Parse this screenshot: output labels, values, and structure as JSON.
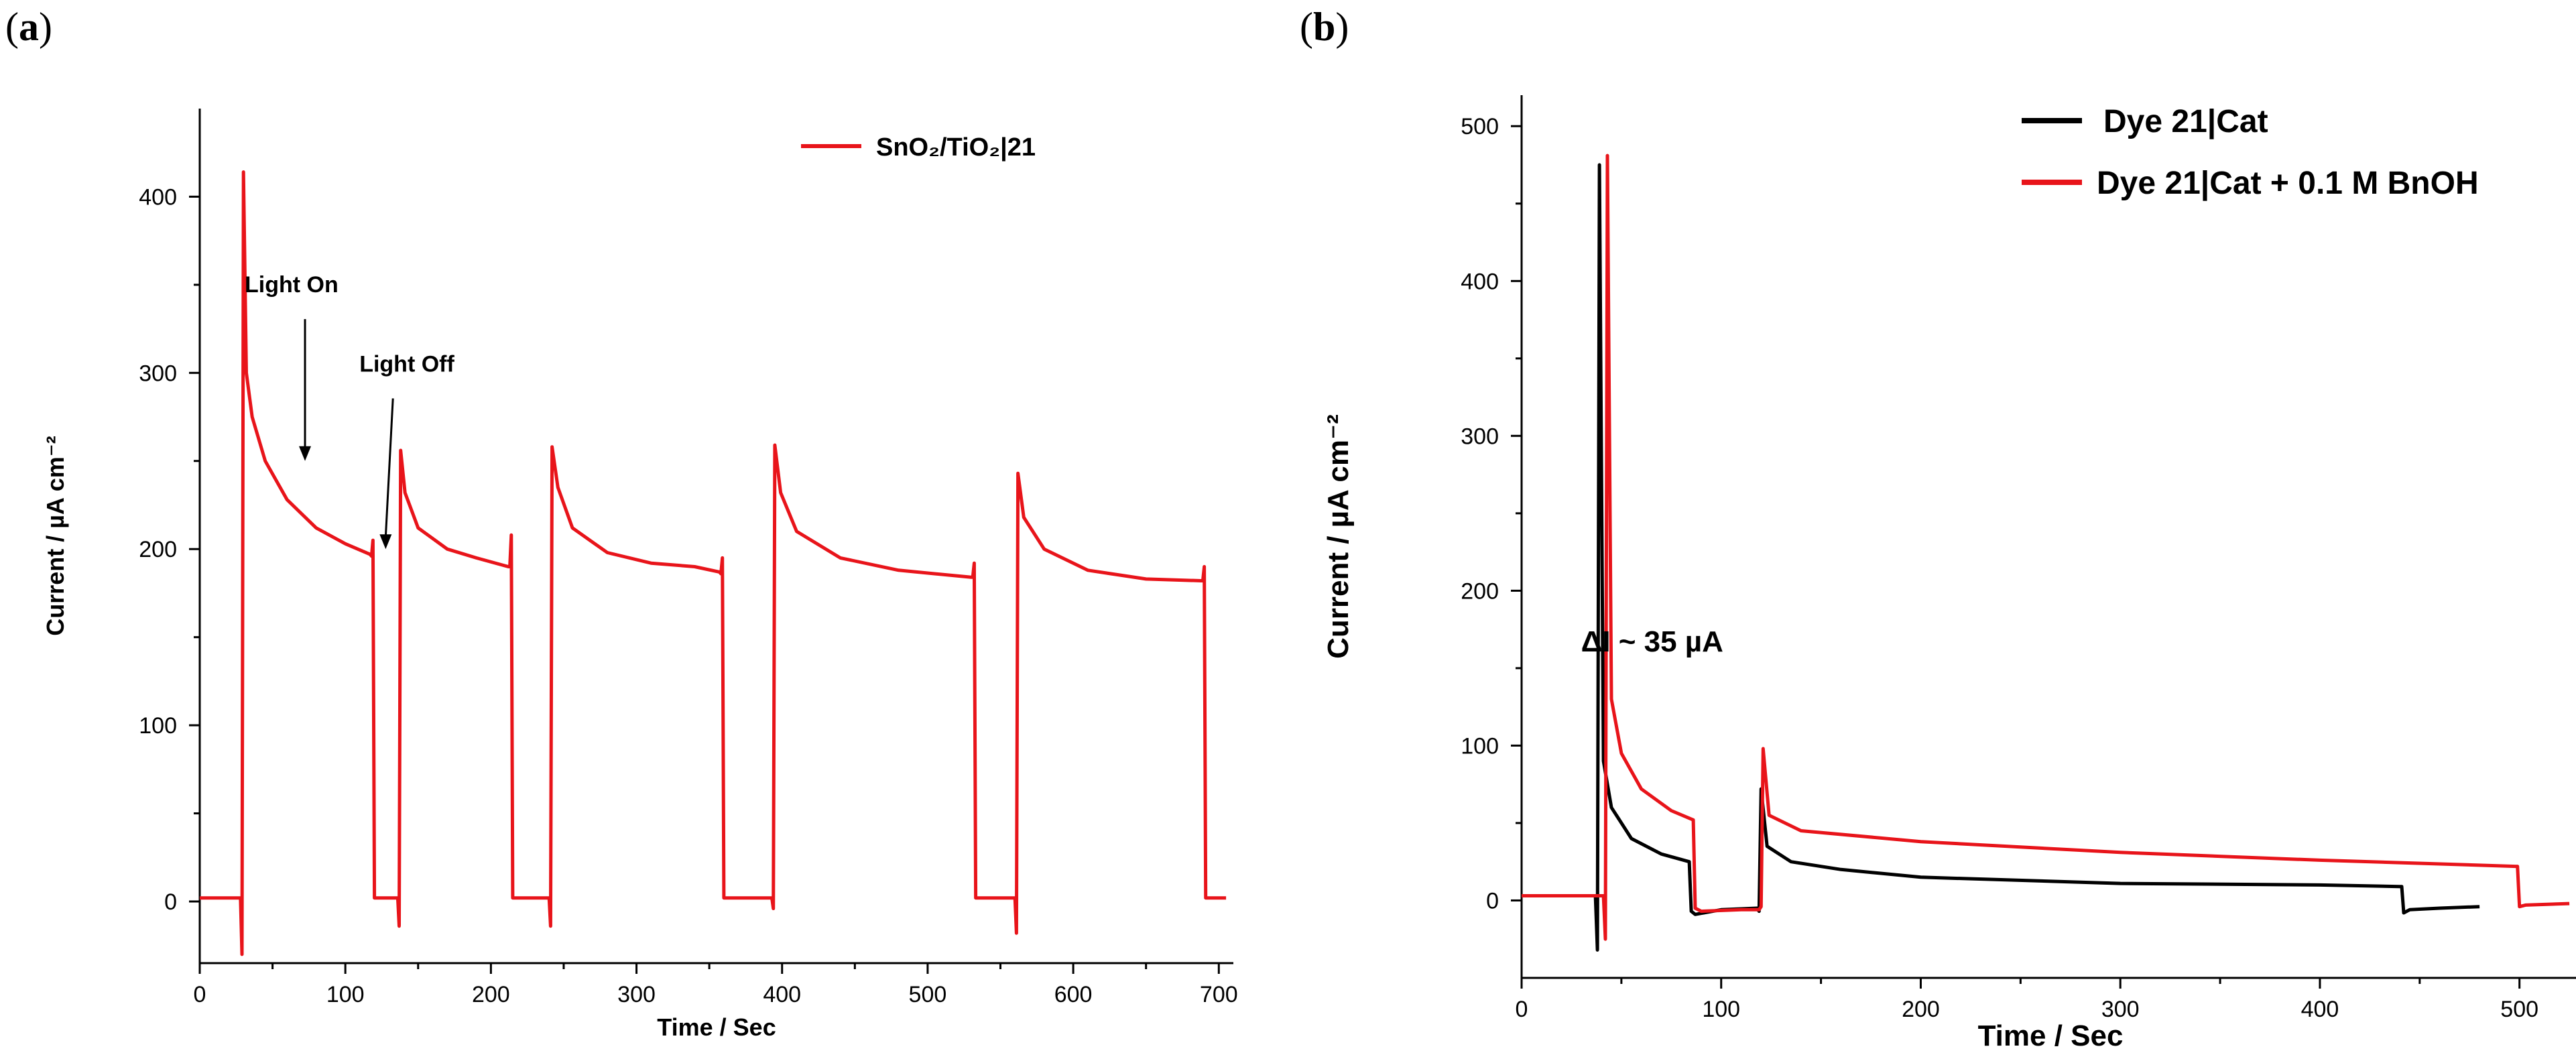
{
  "panels": {
    "a": {
      "label_open": "(",
      "label_letter": "a",
      "label_close": ")"
    },
    "b": {
      "label_open": "(",
      "label_letter": "b",
      "label_close": ")"
    }
  },
  "chart_data": [
    {
      "id": "a",
      "type": "line",
      "title": "",
      "xlabel": "Time / Sec",
      "ylabel": "Current / µA cm⁻²",
      "xlim": [
        0,
        710
      ],
      "ylim": [
        -35,
        450
      ],
      "xticks": [
        0,
        100,
        200,
        300,
        400,
        500,
        600,
        700
      ],
      "yticks": [
        0,
        100,
        200,
        300,
        400
      ],
      "legend": {
        "position": "top-right",
        "entries": [
          {
            "text": "SnO₂/TiO₂|21",
            "color": "#e8141a"
          }
        ]
      },
      "annotations": [
        {
          "text": "Light On",
          "x": 70,
          "y": 340,
          "arrow_to": [
            70,
            250
          ]
        },
        {
          "text": "Light Off",
          "x": 135,
          "y": 295,
          "arrow_to": [
            130,
            200
          ]
        }
      ],
      "series": [
        {
          "name": "SnO₂/TiO₂|21",
          "color": "#e8141a",
          "points": [
            [
              0,
              2
            ],
            [
              28,
              2
            ],
            [
              29,
              -30
            ],
            [
              30,
              414
            ],
            [
              32,
              300
            ],
            [
              36,
              275
            ],
            [
              45,
              250
            ],
            [
              60,
              228
            ],
            [
              80,
              212
            ],
            [
              100,
              203
            ],
            [
              117,
              197
            ],
            [
              118,
              196
            ],
            [
              119,
              205
            ],
            [
              120,
              2
            ],
            [
              136,
              2
            ],
            [
              137,
              -14
            ],
            [
              138,
              256
            ],
            [
              141,
              232
            ],
            [
              150,
              212
            ],
            [
              170,
              200
            ],
            [
              190,
              195
            ],
            [
              212,
              190
            ],
            [
              213,
              190
            ],
            [
              214,
              208
            ],
            [
              215,
              2
            ],
            [
              240,
              2
            ],
            [
              241,
              -14
            ],
            [
              242,
              258
            ],
            [
              246,
              235
            ],
            [
              256,
              212
            ],
            [
              280,
              198
            ],
            [
              310,
              192
            ],
            [
              340,
              190
            ],
            [
              357,
              187
            ],
            [
              358,
              186
            ],
            [
              359,
              195
            ],
            [
              360,
              2
            ],
            [
              393,
              2
            ],
            [
              394,
              -4
            ],
            [
              395,
              259
            ],
            [
              399,
              232
            ],
            [
              410,
              210
            ],
            [
              440,
              195
            ],
            [
              480,
              188
            ],
            [
              530,
              184
            ],
            [
              531,
              184
            ],
            [
              532,
              192
            ],
            [
              533,
              2
            ],
            [
              560,
              2
            ],
            [
              561,
              -18
            ],
            [
              562,
              243
            ],
            [
              566,
              218
            ],
            [
              580,
              200
            ],
            [
              610,
              188
            ],
            [
              650,
              183
            ],
            [
              688,
              182
            ],
            [
              689,
              182
            ],
            [
              690,
              190
            ],
            [
              691,
              2
            ],
            [
              705,
              2
            ]
          ]
        }
      ]
    },
    {
      "id": "b",
      "type": "line",
      "title": "",
      "xlabel": "Time / Sec",
      "ylabel": "Current / µA cm⁻²",
      "xlim": [
        0,
        530
      ],
      "ylim": [
        -50,
        520
      ],
      "xticks": [
        0,
        100,
        200,
        300,
        400,
        500
      ],
      "yticks": [
        0,
        100,
        200,
        300,
        400,
        500
      ],
      "legend": {
        "position": "top-right",
        "entries": [
          {
            "text": "Dye 21|Cat",
            "color": "#000000"
          },
          {
            "text": "Dye 21|Cat + 0.1 M BnOH",
            "color": "#e8141a"
          }
        ]
      },
      "annotations": [
        {
          "text": "ΔI ~ 35 µA",
          "x": 60,
          "y": 140
        }
      ],
      "series": [
        {
          "name": "Dye 21|Cat",
          "color": "#000000",
          "points": [
            [
              37,
              2
            ],
            [
              38,
              -32
            ],
            [
              39,
              475
            ],
            [
              41,
              90
            ],
            [
              45,
              60
            ],
            [
              55,
              40
            ],
            [
              70,
              30
            ],
            [
              84,
              25
            ],
            [
              85,
              -7
            ],
            [
              87,
              -9
            ],
            [
              100,
              -6
            ],
            [
              118,
              -5
            ],
            [
              119,
              -7
            ],
            [
              120,
              72
            ],
            [
              123,
              35
            ],
            [
              135,
              25
            ],
            [
              160,
              20
            ],
            [
              200,
              15
            ],
            [
              300,
              11
            ],
            [
              400,
              10
            ],
            [
              440,
              9
            ],
            [
              441,
              9
            ],
            [
              442,
              -8
            ],
            [
              445,
              -6
            ],
            [
              460,
              -5
            ],
            [
              480,
              -4
            ]
          ]
        },
        {
          "name": "Dye 21|Cat + 0.1 M BnOH",
          "color": "#e8141a",
          "points": [
            [
              0,
              3
            ],
            [
              41,
              3
            ],
            [
              42,
              -25
            ],
            [
              43,
              481
            ],
            [
              45,
              130
            ],
            [
              50,
              95
            ],
            [
              60,
              72
            ],
            [
              75,
              58
            ],
            [
              86,
              52
            ],
            [
              87,
              -5
            ],
            [
              90,
              -7
            ],
            [
              110,
              -6
            ],
            [
              119,
              -6
            ],
            [
              120,
              -4
            ],
            [
              121,
              98
            ],
            [
              124,
              55
            ],
            [
              140,
              45
            ],
            [
              200,
              38
            ],
            [
              300,
              31
            ],
            [
              400,
              26
            ],
            [
              498,
              22
            ],
            [
              499,
              22
            ],
            [
              500,
              -4
            ],
            [
              503,
              -3
            ],
            [
              525,
              -2
            ]
          ]
        }
      ]
    }
  ]
}
